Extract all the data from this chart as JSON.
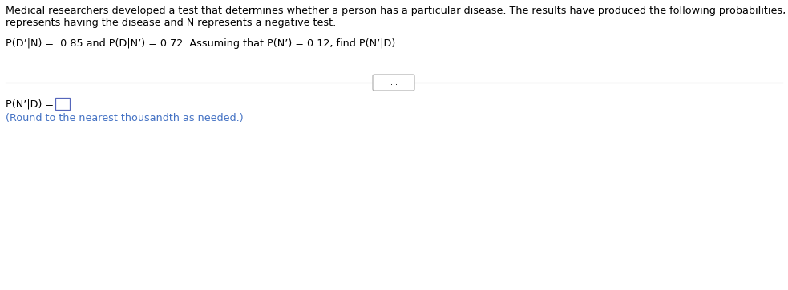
{
  "background_color": "#ffffff",
  "text_color": "#000000",
  "blue_color": "#4472c4",
  "line_color": "#aaaaaa",
  "paragraph1_line1": "Medical researchers developed a test that determines whether a person has a particular disease. The results have produced the following probabilities, where D",
  "paragraph1_line2": "represents having the disease and N represents a negative test.",
  "paragraph2": "P(D’|N) =  0.85 and P(D|N’) = 0.72. Assuming that P(N’) = 0.12, find P(N’|D).",
  "answer_label": "P(N’|D) = ",
  "round_note": "(Round to the nearest thousandth as needed.)",
  "dots_label": "...",
  "font_size_main": 9.2,
  "font_size_answer": 9.2,
  "font_size_dots": 7.0,
  "fig_width": 9.83,
  "fig_height": 3.62,
  "dpi": 100
}
